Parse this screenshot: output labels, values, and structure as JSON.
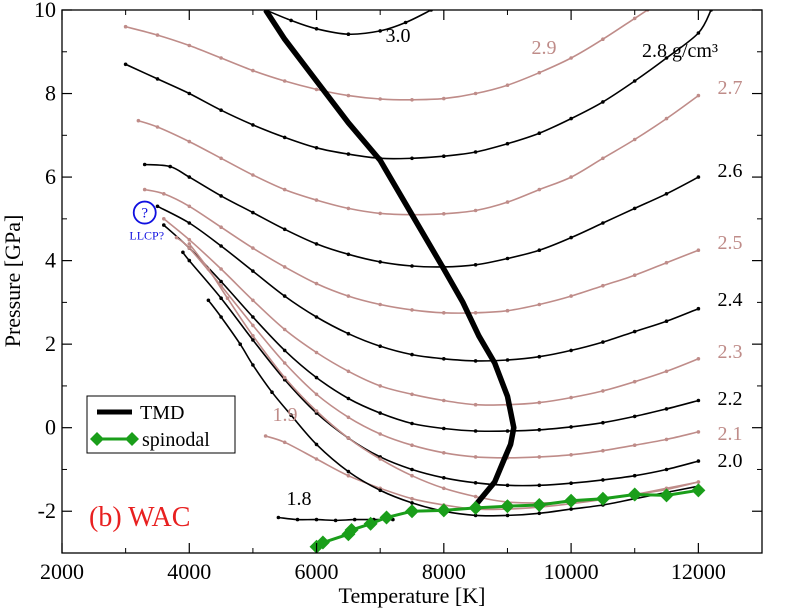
{
  "chart_data": {
    "type": "line",
    "title": "",
    "panel_label": "(b) WAC",
    "xlabel": "Temperature [K]",
    "ylabel": "Pressure [GPa]",
    "xlim": [
      2000,
      13000
    ],
    "ylim": [
      -3,
      10
    ],
    "xticks": [
      "2000",
      "4000",
      "6000",
      "8000",
      "10000",
      "12000"
    ],
    "yticks": [
      "-2",
      "0",
      "2",
      "4",
      "6",
      "8",
      "10"
    ],
    "grid": false,
    "legend_position": "lower-left",
    "legend": [
      {
        "name": "TMD",
        "color": "#000000"
      },
      {
        "name": "spinodal",
        "color": "#1a9e1a"
      }
    ],
    "colors": {
      "black": "#000000",
      "pink": "#bf8c89",
      "green": "#1a9e1a",
      "red": "#e82020",
      "blue": "#1010e0"
    },
    "isochores": [
      {
        "label": "3.0",
        "color": "black",
        "x": [
          5200,
          5600,
          6000,
          6500,
          7000,
          7400,
          7800
        ],
        "y": [
          10.0,
          9.75,
          9.55,
          9.42,
          9.5,
          9.7,
          10.0
        ]
      },
      {
        "label": "2.9",
        "color": "pink",
        "x": [
          3000,
          3500,
          4000,
          4500,
          5000,
          5500,
          6000,
          6500,
          7000,
          7500,
          8000,
          8500,
          9000,
          9500,
          10000,
          10500,
          11000,
          11200
        ],
        "y": [
          9.6,
          9.4,
          9.15,
          8.85,
          8.55,
          8.3,
          8.1,
          7.95,
          7.87,
          7.85,
          7.88,
          8.0,
          8.2,
          8.5,
          8.85,
          9.3,
          9.8,
          10.0
        ]
      },
      {
        "label": "2.8 g/cm³",
        "color": "black",
        "x": [
          3000,
          3500,
          4000,
          4500,
          5000,
          5500,
          6000,
          6500,
          7000,
          7500,
          8000,
          8500,
          9000,
          9500,
          10000,
          10500,
          11000,
          11500,
          12000,
          12200
        ],
        "y": [
          8.7,
          8.35,
          8.0,
          7.6,
          7.25,
          6.95,
          6.7,
          6.55,
          6.45,
          6.45,
          6.5,
          6.6,
          6.8,
          7.05,
          7.4,
          7.8,
          8.3,
          8.85,
          9.45,
          10.0
        ]
      },
      {
        "label": "2.7",
        "color": "pink",
        "x": [
          3200,
          3500,
          4000,
          4500,
          5000,
          5500,
          6000,
          6500,
          7000,
          7500,
          8000,
          8500,
          9000,
          9500,
          10000,
          10500,
          11000,
          11500,
          12000
        ],
        "y": [
          7.35,
          7.2,
          6.85,
          6.45,
          6.05,
          5.7,
          5.45,
          5.25,
          5.13,
          5.1,
          5.12,
          5.2,
          5.4,
          5.7,
          6.0,
          6.45,
          6.9,
          7.4,
          7.95
        ]
      },
      {
        "label": "2.6",
        "color": "black",
        "x": [
          3300,
          3700,
          4000,
          4500,
          5000,
          5500,
          6000,
          6500,
          7000,
          7500,
          8000,
          8500,
          9000,
          9500,
          10000,
          10500,
          11000,
          11500,
          12000
        ],
        "y": [
          6.3,
          6.25,
          6.0,
          5.55,
          5.15,
          4.75,
          4.4,
          4.15,
          3.97,
          3.87,
          3.85,
          3.9,
          4.05,
          4.25,
          4.55,
          4.9,
          5.25,
          5.6,
          6.0
        ]
      },
      {
        "label": "2.5",
        "color": "pink",
        "x": [
          3300,
          3600,
          4000,
          4500,
          5000,
          5500,
          6000,
          6500,
          7000,
          7500,
          8000,
          8500,
          9000,
          9500,
          10000,
          10500,
          11000,
          11500,
          12000
        ],
        "y": [
          5.7,
          5.6,
          5.3,
          4.8,
          4.3,
          3.85,
          3.45,
          3.15,
          2.95,
          2.82,
          2.75,
          2.75,
          2.8,
          2.95,
          3.15,
          3.4,
          3.65,
          3.95,
          4.25
        ]
      },
      {
        "label": "2.4",
        "color": "black",
        "x": [
          3500,
          4000,
          4500,
          5000,
          5500,
          6000,
          6500,
          7000,
          7500,
          8000,
          8500,
          9000,
          9500,
          10000,
          10500,
          11000,
          11500,
          12000
        ],
        "y": [
          5.3,
          4.9,
          4.35,
          3.75,
          3.15,
          2.65,
          2.25,
          1.95,
          1.75,
          1.65,
          1.6,
          1.62,
          1.7,
          1.85,
          2.05,
          2.3,
          2.55,
          2.85
        ]
      },
      {
        "label": "2.3",
        "color": "pink",
        "x": [
          3600,
          4000,
          4500,
          5000,
          5500,
          6000,
          6500,
          7000,
          7500,
          8000,
          8500,
          9000,
          9500,
          10000,
          10500,
          11000,
          11500,
          12000
        ],
        "y": [
          5.0,
          4.5,
          3.8,
          3.05,
          2.35,
          1.8,
          1.35,
          1.0,
          0.8,
          0.65,
          0.55,
          0.55,
          0.6,
          0.72,
          0.88,
          1.1,
          1.35,
          1.65
        ]
      },
      {
        "label": "2.2",
        "color": "black",
        "x": [
          3600,
          4000,
          4500,
          5000,
          5500,
          6000,
          6500,
          7000,
          7500,
          8000,
          8500,
          9000,
          9500,
          10000,
          10500,
          11000,
          11500,
          12000
        ],
        "y": [
          4.85,
          4.3,
          3.5,
          2.65,
          1.85,
          1.2,
          0.7,
          0.35,
          0.1,
          -0.02,
          -0.08,
          -0.08,
          -0.05,
          0.02,
          0.12,
          0.27,
          0.45,
          0.65
        ]
      },
      {
        "label": "2.1",
        "color": "pink",
        "x": [
          3800,
          4000,
          4500,
          5000,
          5500,
          6000,
          6500,
          7000,
          7500,
          8000,
          8500,
          9000,
          9500,
          10000,
          10500,
          11000,
          11500,
          12000
        ],
        "y": [
          4.55,
          4.3,
          3.4,
          2.45,
          1.55,
          0.8,
          0.25,
          -0.15,
          -0.42,
          -0.6,
          -0.7,
          -0.72,
          -0.7,
          -0.65,
          -0.55,
          -0.42,
          -0.28,
          -0.1
        ]
      },
      {
        "label": "2.0",
        "color": "black",
        "x": [
          3900,
          4000,
          4500,
          5000,
          5500,
          6000,
          6500,
          7000,
          7500,
          8000,
          8500,
          9000,
          9500,
          10000,
          10500,
          11000,
          11500,
          12000
        ],
        "y": [
          4.2,
          4.0,
          3.1,
          2.1,
          1.15,
          0.35,
          -0.25,
          -0.7,
          -1.0,
          -1.2,
          -1.32,
          -1.38,
          -1.38,
          -1.33,
          -1.25,
          -1.15,
          -1.0,
          -0.8
        ]
      },
      {
        "label": "1.9",
        "color": "pink",
        "x": [
          5200,
          5500,
          6000,
          6500,
          7000,
          7500,
          8000,
          8500,
          9000,
          9500,
          10000,
          10500,
          11000,
          11500,
          12000
        ],
        "y": [
          -0.2,
          -0.35,
          -0.75,
          -1.15,
          -1.45,
          -1.7,
          -1.85,
          -1.95,
          -1.95,
          -1.9,
          -1.82,
          -1.72,
          -1.6,
          -1.45,
          -1.3
        ]
      },
      {
        "label": "1.8",
        "color": "black",
        "x": [
          5400,
          5700,
          6000,
          6300,
          6600,
          6900,
          7200
        ],
        "y": [
          -2.15,
          -2.2,
          -2.2,
          -2.22,
          -2.2,
          -2.2,
          -2.2
        ]
      },
      {
        "label": "",
        "color": "black",
        "x": [
          4300,
          4500,
          4800,
          5000,
          5300,
          5600,
          6000,
          6500,
          7000,
          7500,
          8000,
          8500,
          9000,
          9500,
          10000,
          10500,
          11000,
          11500,
          12000
        ],
        "y": [
          3.05,
          2.65,
          2.0,
          1.5,
          0.85,
          0.3,
          -0.4,
          -1.05,
          -1.5,
          -1.8,
          -2.0,
          -2.1,
          -2.1,
          -2.05,
          -1.95,
          -1.85,
          -1.7,
          -1.55,
          -1.4
        ]
      },
      {
        "label": "",
        "color": "pink",
        "x": [
          4000,
          4300,
          4600,
          5000,
          5500,
          6000,
          6500,
          7000,
          7500,
          8000,
          8500,
          9000,
          9500,
          10000,
          10500,
          11000,
          11500,
          12000
        ],
        "y": [
          4.4,
          3.8,
          3.1,
          2.2,
          1.2,
          0.4,
          -0.25,
          -0.75,
          -1.15,
          -1.45,
          -1.65,
          -1.78,
          -1.8,
          -1.78,
          -1.7,
          -1.6,
          -1.48,
          -1.3
        ]
      }
    ],
    "tmd": {
      "name": "TMD",
      "x": [
        5200,
        5500,
        6000,
        6500,
        7000,
        7500,
        8000,
        8300,
        8550,
        8800,
        9000,
        9100,
        9050,
        8950,
        8800,
        8500
      ],
      "y": [
        10.0,
        9.3,
        8.3,
        7.3,
        6.4,
        5.1,
        3.8,
        3.0,
        2.2,
        1.55,
        0.75,
        0.0,
        -0.4,
        -0.75,
        -1.3,
        -1.85
      ]
    },
    "spinodal": {
      "name": "spinodal",
      "x": [
        6000,
        6100,
        6500,
        6550,
        6850,
        7100,
        7500,
        8000,
        8500,
        9000,
        9500,
        10000,
        10500,
        11000,
        11500,
        12000
      ],
      "y": [
        -2.85,
        -2.75,
        -2.55,
        -2.45,
        -2.3,
        -2.15,
        -2.0,
        -1.98,
        -1.92,
        -1.88,
        -1.85,
        -1.75,
        -1.7,
        -1.6,
        -1.62,
        -1.5
      ]
    },
    "llcp": {
      "symbol": "?",
      "label": "LLCP?",
      "x": 3300,
      "y": 5.15
    }
  }
}
